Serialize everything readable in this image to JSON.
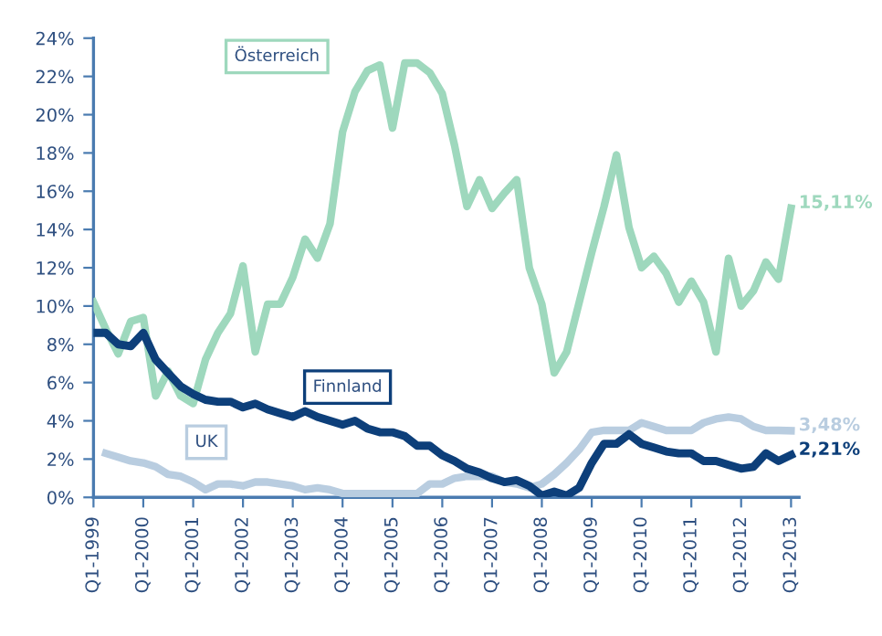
{
  "chart_data": {
    "type": "line",
    "x": [
      "1999-01",
      "1999-04",
      "1999-07",
      "1999-10",
      "2000-01",
      "2000-04",
      "2000-07",
      "2000-10",
      "2001-01",
      "2001-04",
      "2001-07",
      "2001-10",
      "2002-01",
      "2002-04",
      "2002-07",
      "2002-10",
      "2003-01",
      "2003-04",
      "2003-07",
      "2003-10",
      "2004-01",
      "2004-04",
      "2004-07",
      "2004-10",
      "2005-01",
      "2005-04",
      "2005-07",
      "2005-10",
      "2006-01",
      "2006-04",
      "2006-07",
      "2006-10",
      "2007-01",
      "2007-04",
      "2007-07",
      "2007-10",
      "2008-01",
      "2008-04",
      "2008-07",
      "2008-10",
      "2009-01",
      "2009-04",
      "2009-07",
      "2009-10",
      "2010-01",
      "2010-04",
      "2010-07",
      "2010-10",
      "2011-01",
      "2011-04",
      "2011-07",
      "2011-10",
      "2012-01",
      "2012-04",
      "2012-07",
      "2012-10",
      "2013-01"
    ],
    "series": [
      {
        "name": "Österreich",
        "color": "#9ed8bd",
        "values": [
          10.2,
          8.8,
          7.5,
          9.2,
          9.4,
          5.3,
          6.6,
          5.3,
          4.9,
          7.2,
          8.6,
          9.6,
          12.1,
          7.6,
          10.1,
          10.1,
          11.5,
          13.5,
          12.5,
          14.3,
          19.1,
          21.2,
          22.3,
          22.6,
          19.3,
          22.7,
          22.7,
          22.2,
          21.1,
          18.4,
          15.2,
          16.6,
          15.1,
          15.9,
          16.6,
          12.0,
          10.1,
          6.5,
          7.6,
          10.2,
          12.8,
          15.2,
          17.9,
          14.1,
          12.0,
          12.6,
          11.7,
          10.2,
          11.3,
          10.2,
          7.6,
          12.5,
          10.0,
          10.8,
          12.3,
          11.4,
          15.11
        ],
        "value_labels": [
          null,
          null,
          null,
          null,
          null,
          null,
          null,
          null,
          null,
          null,
          null,
          null,
          null,
          null,
          null,
          null,
          null,
          null,
          null,
          null,
          null,
          null,
          null,
          null,
          null,
          null,
          null,
          null,
          null,
          null,
          null,
          null,
          null,
          null,
          null,
          null,
          null,
          null,
          null,
          null,
          null,
          null,
          null,
          null,
          null,
          null,
          null,
          null,
          null,
          null,
          null,
          null,
          null,
          null,
          null,
          null,
          "15,11%"
        ]
      },
      {
        "name": "Finnland",
        "color": "#0d3f7a",
        "values": [
          8.6,
          8.6,
          8.0,
          7.9,
          8.6,
          7.2,
          6.5,
          5.8,
          5.4,
          5.1,
          5.0,
          5.0,
          4.7,
          4.9,
          4.6,
          4.4,
          4.2,
          4.5,
          4.2,
          4.0,
          3.8,
          4.0,
          3.6,
          3.4,
          3.4,
          3.2,
          2.7,
          2.7,
          2.2,
          1.9,
          1.5,
          1.3,
          1.0,
          0.8,
          0.9,
          0.6,
          0.1,
          0.3,
          0.1,
          0.5,
          1.8,
          2.8,
          2.8,
          3.3,
          2.8,
          2.6,
          2.4,
          2.3,
          2.3,
          1.9,
          1.9,
          1.7,
          1.5,
          1.6,
          2.3,
          1.9,
          2.21
        ],
        "value_labels": [
          null,
          null,
          null,
          null,
          null,
          null,
          null,
          null,
          null,
          null,
          null,
          null,
          null,
          null,
          null,
          null,
          null,
          null,
          null,
          null,
          null,
          null,
          null,
          null,
          null,
          null,
          null,
          null,
          null,
          null,
          null,
          null,
          null,
          null,
          null,
          null,
          null,
          null,
          null,
          null,
          null,
          null,
          null,
          null,
          null,
          null,
          null,
          null,
          null,
          null,
          null,
          null,
          null,
          null,
          null,
          null,
          "2,21%"
        ]
      },
      {
        "name": "UK",
        "color": "#b9cde0",
        "values": [
          null,
          2.3,
          2.1,
          1.9,
          1.8,
          1.6,
          1.2,
          1.1,
          0.8,
          0.4,
          0.7,
          0.7,
          0.6,
          0.8,
          0.8,
          0.7,
          0.6,
          0.4,
          0.5,
          0.4,
          0.2,
          0.2,
          0.2,
          0.2,
          0.2,
          0.2,
          0.2,
          0.7,
          0.7,
          1.0,
          1.1,
          1.1,
          1.1,
          0.8,
          0.7,
          0.5,
          0.7,
          1.2,
          1.8,
          2.5,
          3.4,
          3.5,
          3.5,
          3.5,
          3.9,
          3.7,
          3.5,
          3.5,
          3.5,
          3.9,
          4.1,
          4.2,
          4.1,
          3.7,
          3.5,
          3.5,
          3.48
        ],
        "value_labels": [
          null,
          null,
          null,
          null,
          null,
          null,
          null,
          null,
          null,
          null,
          null,
          null,
          null,
          null,
          null,
          null,
          null,
          null,
          null,
          null,
          null,
          null,
          null,
          null,
          null,
          null,
          null,
          null,
          null,
          null,
          null,
          null,
          null,
          null,
          null,
          null,
          null,
          null,
          null,
          null,
          null,
          null,
          null,
          null,
          null,
          null,
          null,
          null,
          null,
          null,
          null,
          null,
          null,
          null,
          null,
          null,
          "3,48%"
        ]
      }
    ],
    "xlim": [
      "1999-01",
      "2013-03"
    ],
    "xticks": [
      {
        "value": "1999-01",
        "label": "Q1-1999"
      },
      {
        "value": "2000-01",
        "label": "Q1-2000"
      },
      {
        "value": "2001-01",
        "label": "Q1-2001"
      },
      {
        "value": "2002-01",
        "label": "Q1-2002"
      },
      {
        "value": "2003-01",
        "label": "Q1-2003"
      },
      {
        "value": "2004-01",
        "label": "Q1-2004"
      },
      {
        "value": "2005-01",
        "label": "Q1-2005"
      },
      {
        "value": "2006-01",
        "label": "Q1-2006"
      },
      {
        "value": "2007-01",
        "label": "Q1-2007"
      },
      {
        "value": "2008-01",
        "label": "Q1-2008"
      },
      {
        "value": "2009-01",
        "label": "Q1-2009"
      },
      {
        "value": "2010-01",
        "label": "Q1-2010"
      },
      {
        "value": "2011-01",
        "label": "Q1-2011"
      },
      {
        "value": "2012-01",
        "label": "Q1-2012"
      },
      {
        "value": "2013-01",
        "label": "Q1-2013"
      }
    ],
    "ylim": [
      0,
      24
    ],
    "yticks": [
      {
        "value": 0,
        "label": "0%"
      },
      {
        "value": 2,
        "label": "2%"
      },
      {
        "value": 4,
        "label": "4%"
      },
      {
        "value": 6,
        "label": "6%"
      },
      {
        "value": 8,
        "label": "8%"
      },
      {
        "value": 10,
        "label": "10%"
      },
      {
        "value": 12,
        "label": "12%"
      },
      {
        "value": 14,
        "label": "14%"
      },
      {
        "value": 16,
        "label": "16%"
      },
      {
        "value": 18,
        "label": "18%"
      },
      {
        "value": 20,
        "label": "20%"
      },
      {
        "value": 22,
        "label": "22%"
      },
      {
        "value": 24,
        "label": "24%"
      }
    ],
    "grid": false,
    "legend": false,
    "marker": "none",
    "line_style": "solid"
  }
}
